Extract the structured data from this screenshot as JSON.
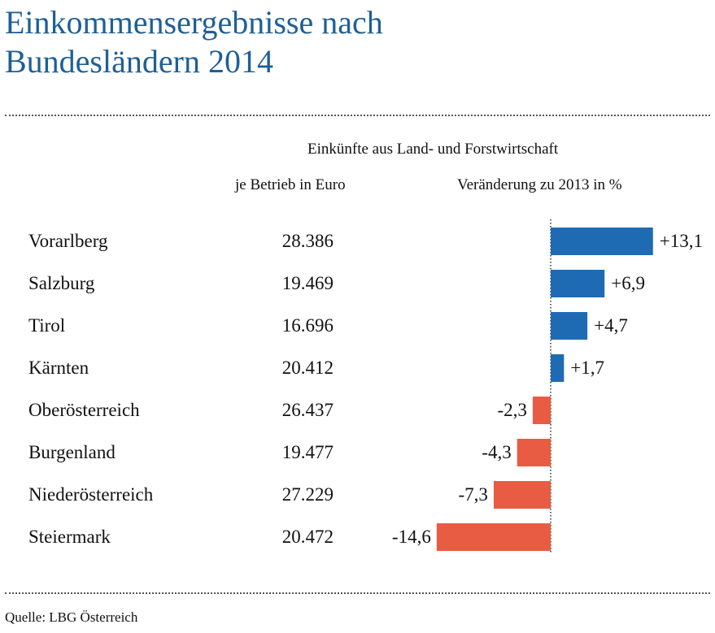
{
  "title": {
    "line1": "Einkommensergebnisse nach",
    "line2": "Bundesländern 2014"
  },
  "headers": {
    "main": "Einkünfte aus Land- und Forstwirtschaft",
    "per_farm": "je Betrieb in Euro",
    "change": "Veränderung zu 2013 in %"
  },
  "source": "Quelle: LBG Österreich",
  "colors": {
    "title": "#1f5f96",
    "positive": "#1f6bb3",
    "negative": "#e85c44"
  },
  "chart_data": {
    "type": "bar",
    "orientation": "horizontal",
    "categories": [
      "Vorarlberg",
      "Salzburg",
      "Tirol",
      "Kärnten",
      "Oberösterreich",
      "Burgenland",
      "Niederösterreich",
      "Steiermark"
    ],
    "income_per_farm_eur": [
      "28.386",
      "19.469",
      "16.696",
      "20.412",
      "26.437",
      "19.477",
      "27.229",
      "20.472"
    ],
    "values": [
      13.1,
      6.9,
      4.7,
      1.7,
      -2.3,
      -4.3,
      -7.3,
      -14.6
    ],
    "value_labels": [
      "+13,1",
      "+6,9",
      "+4,7",
      "+1,7",
      "-2,3",
      "-4,3",
      "-7,3",
      "-14,6"
    ],
    "zero_line": "dotted",
    "grid": false
  }
}
